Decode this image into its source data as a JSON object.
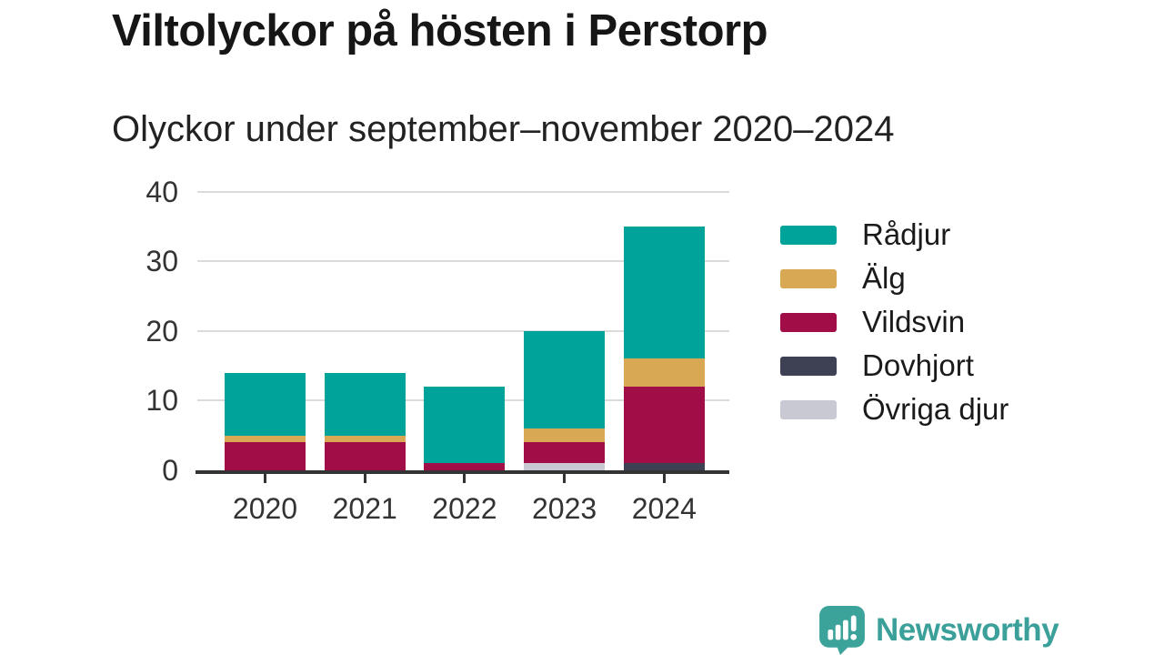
{
  "header": {
    "title": "Viltolyckor på hösten i Perstorp",
    "subtitle": "Olyckor under september–november 2020–2024"
  },
  "branding": {
    "logo_text": "Newsworthy",
    "logo_icon": "speech-bubble-bar-chart-icon",
    "logo_color": "#3aa099"
  },
  "colors": {
    "background": "#ffffff",
    "grid": "#dbdbdb",
    "axis": "#333333",
    "text_dark": "#161616",
    "tick_text": "#333333"
  },
  "chart_data": {
    "type": "bar",
    "stacked": true,
    "title": "Viltolyckor på hösten i Perstorp",
    "subtitle": "Olyckor under september–november 2020–2024",
    "categories": [
      "2020",
      "2021",
      "2022",
      "2023",
      "2024"
    ],
    "series": [
      {
        "name": "Rådjur",
        "color": "#00a39a",
        "values": [
          9,
          9,
          11,
          14,
          19
        ]
      },
      {
        "name": "Älg",
        "color": "#d8a855",
        "values": [
          1,
          1,
          0,
          2,
          4
        ]
      },
      {
        "name": "Vildsvin",
        "color": "#a00d47",
        "values": [
          4,
          4,
          1,
          3,
          11
        ]
      },
      {
        "name": "Dovhjort",
        "color": "#3e4154",
        "values": [
          0,
          0,
          0,
          0,
          1
        ]
      },
      {
        "name": "Övriga djur",
        "color": "#c9c9d3",
        "values": [
          0,
          0,
          0,
          1,
          0
        ]
      }
    ],
    "stack_order_bottom_to_top": [
      "Övriga djur",
      "Dovhjort",
      "Vildsvin",
      "Älg",
      "Rådjur"
    ],
    "totals": [
      14,
      14,
      12,
      20,
      35
    ],
    "xlabel": "",
    "ylabel": "",
    "ylim": [
      0,
      40
    ],
    "yticks": [
      0,
      10,
      20,
      30,
      40
    ],
    "grid": "horizontal",
    "legend_position": "right"
  }
}
